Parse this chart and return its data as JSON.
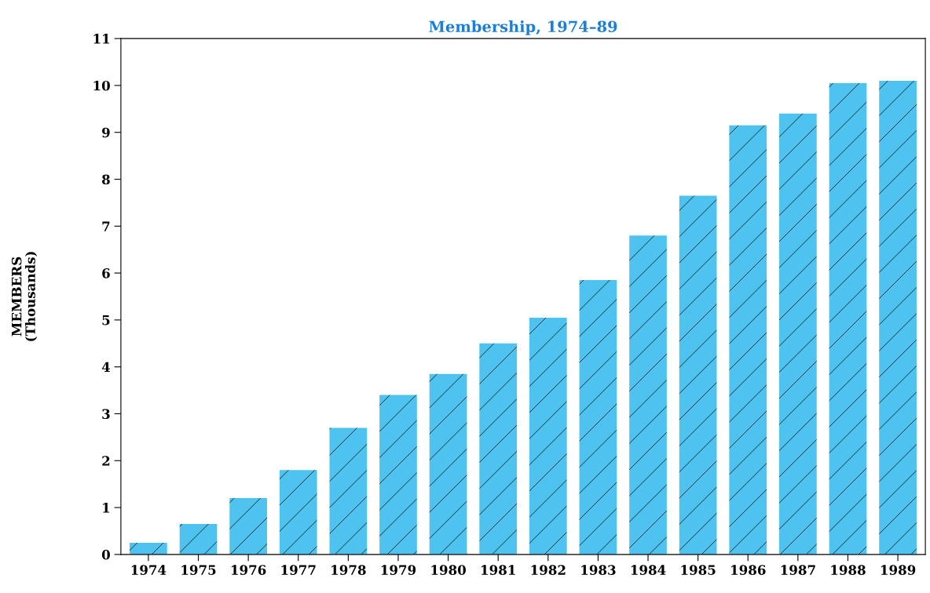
{
  "chart_data": {
    "type": "bar",
    "title": "Membership, 1974–89",
    "ylabel": "MEMBERS\n(Thousands)",
    "categories": [
      "1974",
      "1975",
      "1976",
      "1977",
      "1978",
      "1979",
      "1980",
      "1981",
      "1982",
      "1983",
      "1984",
      "1985",
      "1986",
      "1987",
      "1988",
      "1989"
    ],
    "values": [
      0.25,
      0.65,
      1.2,
      1.8,
      2.7,
      3.4,
      3.85,
      4.5,
      5.05,
      5.85,
      6.8,
      7.65,
      9.15,
      9.4,
      10.05,
      10.1
    ],
    "color": "#4fc3ef",
    "ylim": [
      0,
      11
    ],
    "yticks": [
      0,
      1,
      2,
      3,
      4,
      5,
      6,
      7,
      8,
      9,
      10,
      11
    ],
    "grid": false
  }
}
